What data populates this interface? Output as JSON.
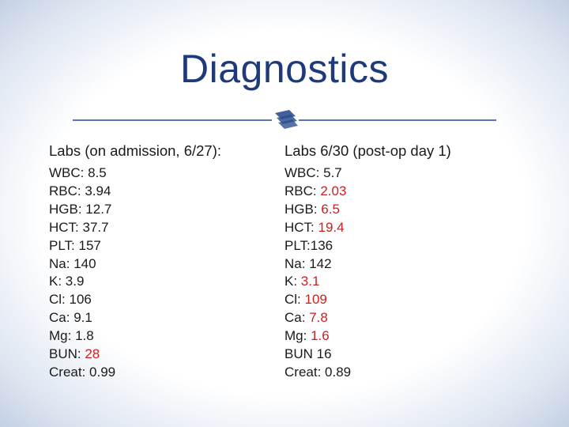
{
  "slide": {
    "title": "Diagnostics",
    "divider_icon": "stack-of-pages-icon",
    "accent_color": "#1f3a7a",
    "abnormal_color": "#cc1f1f"
  },
  "columns": [
    {
      "header": "Labs (on admission, 6/27):",
      "rows": [
        {
          "label": "WBC: ",
          "value": "8.5",
          "abnormal": false
        },
        {
          "label": "RBC: ",
          "value": "3.94",
          "abnormal": false
        },
        {
          "label": "HGB: ",
          "value": "12.7",
          "abnormal": false
        },
        {
          "label": "HCT: ",
          "value": "37.7",
          "abnormal": false
        },
        {
          "label": "PLT: ",
          "value": "157",
          "abnormal": false
        },
        {
          "label": "Na: ",
          "value": "140",
          "abnormal": false
        },
        {
          "label": "K: ",
          "value": "3.9",
          "abnormal": false
        },
        {
          "label": "Cl: ",
          "value": "106",
          "abnormal": false
        },
        {
          "label": "Ca: ",
          "value": "9.1",
          "abnormal": false
        },
        {
          "label": "Mg: ",
          "value": "1.8",
          "abnormal": false
        },
        {
          "label": "BUN: ",
          "value": "28",
          "abnormal": true
        },
        {
          "label": "Creat: ",
          "value": "0.99",
          "abnormal": false
        }
      ]
    },
    {
      "header": "Labs 6/30 (post-op day 1)",
      "rows": [
        {
          "label": "WBC: ",
          "value": "5.7",
          "abnormal": false
        },
        {
          "label": "RBC: ",
          "value": "2.03",
          "abnormal": true
        },
        {
          "label": "HGB: ",
          "value": "6.5",
          "abnormal": true
        },
        {
          "label": "HCT: ",
          "value": "19.4",
          "abnormal": true
        },
        {
          "label": "PLT:",
          "value": "136",
          "abnormal": false
        },
        {
          "label": "Na: ",
          "value": "142",
          "abnormal": false
        },
        {
          "label": "K: ",
          "value": "3.1",
          "abnormal": true
        },
        {
          "label": "Cl: ",
          "value": "109",
          "abnormal": true
        },
        {
          "label": "Ca: ",
          "value": "7.8",
          "abnormal": true
        },
        {
          "label": "Mg: ",
          "value": "1.6",
          "abnormal": true
        },
        {
          "label": "BUN ",
          "value": "16",
          "abnormal": false
        },
        {
          "label": "Creat: ",
          "value": "0.89",
          "abnormal": false
        }
      ]
    }
  ]
}
